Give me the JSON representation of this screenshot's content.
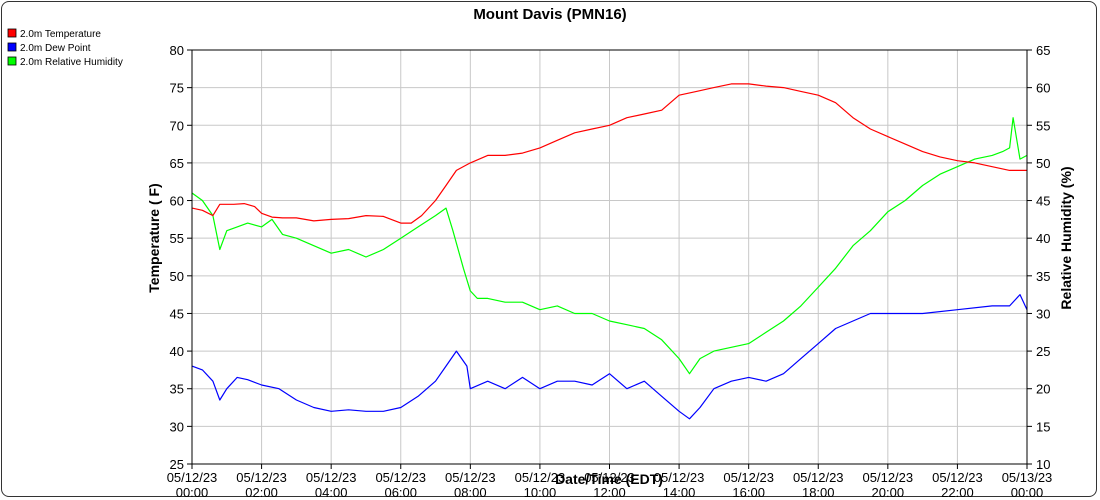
{
  "chart_data": {
    "type": "line",
    "title": "Mount Davis (PMN16)",
    "xlabel": "Date/Time (EDT)",
    "ylabel_left": "Temperature ( F)",
    "ylabel_right": "Relative Humidity (%)",
    "ylim_left": [
      25,
      80
    ],
    "ylim_right": [
      10,
      65
    ],
    "xlim_hours": [
      0,
      24
    ],
    "grid": true,
    "legend_placement": "top-left",
    "x_ticks": [
      {
        "date": "05/12/23",
        "time": "00:00"
      },
      {
        "date": "05/12/23",
        "time": "02:00"
      },
      {
        "date": "05/12/23",
        "time": "04:00"
      },
      {
        "date": "05/12/23",
        "time": "06:00"
      },
      {
        "date": "05/12/23",
        "time": "08:00"
      },
      {
        "date": "05/12/23",
        "time": "10:00"
      },
      {
        "date": "05/12/23",
        "time": "12:00"
      },
      {
        "date": "05/12/23",
        "time": "14:00"
      },
      {
        "date": "05/12/23",
        "time": "16:00"
      },
      {
        "date": "05/12/23",
        "time": "18:00"
      },
      {
        "date": "05/12/23",
        "time": "20:00"
      },
      {
        "date": "05/12/23",
        "time": "22:00"
      },
      {
        "date": "05/13/23",
        "time": "00:00"
      }
    ],
    "y_left_ticks": [
      "25",
      "30",
      "35",
      "40",
      "45",
      "50",
      "55",
      "60",
      "65",
      "70",
      "75",
      "80"
    ],
    "y_right_ticks": [
      "10",
      "15",
      "20",
      "25",
      "30",
      "35",
      "40",
      "45",
      "50",
      "55",
      "60",
      "65"
    ],
    "series": [
      {
        "name": "2.0m Temperature",
        "color": "#ff0000",
        "axis": "left",
        "points": [
          [
            0,
            59.0
          ],
          [
            0.3,
            58.7
          ],
          [
            0.6,
            58.0
          ],
          [
            0.8,
            59.5
          ],
          [
            1.2,
            59.5
          ],
          [
            1.5,
            59.6
          ],
          [
            1.8,
            59.2
          ],
          [
            2.0,
            58.3
          ],
          [
            2.3,
            57.8
          ],
          [
            2.6,
            57.7
          ],
          [
            3.0,
            57.7
          ],
          [
            3.5,
            57.3
          ],
          [
            4.0,
            57.5
          ],
          [
            4.5,
            57.6
          ],
          [
            5.0,
            58.0
          ],
          [
            5.5,
            57.9
          ],
          [
            6.0,
            57.0
          ],
          [
            6.3,
            57.0
          ],
          [
            6.6,
            58.0
          ],
          [
            7.0,
            60.0
          ],
          [
            7.3,
            62.0
          ],
          [
            7.6,
            64.0
          ],
          [
            8.0,
            65.0
          ],
          [
            8.5,
            66.0
          ],
          [
            9.0,
            66.0
          ],
          [
            9.5,
            66.3
          ],
          [
            10.0,
            67.0
          ],
          [
            10.5,
            68.0
          ],
          [
            11.0,
            69.0
          ],
          [
            11.5,
            69.5
          ],
          [
            12.0,
            70.0
          ],
          [
            12.5,
            71.0
          ],
          [
            13.0,
            71.5
          ],
          [
            13.5,
            72.0
          ],
          [
            14.0,
            74.0
          ],
          [
            14.5,
            74.5
          ],
          [
            15.0,
            75.0
          ],
          [
            15.5,
            75.5
          ],
          [
            16.0,
            75.5
          ],
          [
            16.5,
            75.2
          ],
          [
            17.0,
            75.0
          ],
          [
            17.5,
            74.5
          ],
          [
            18.0,
            74.0
          ],
          [
            18.5,
            73.0
          ],
          [
            19.0,
            71.0
          ],
          [
            19.5,
            69.5
          ],
          [
            20.0,
            68.5
          ],
          [
            20.5,
            67.5
          ],
          [
            21.0,
            66.5
          ],
          [
            21.5,
            65.8
          ],
          [
            22.0,
            65.3
          ],
          [
            22.5,
            65.0
          ],
          [
            23.0,
            64.5
          ],
          [
            23.5,
            64.0
          ],
          [
            24.0,
            64.0
          ]
        ]
      },
      {
        "name": "2.0m Dew Point",
        "color": "#0000ff",
        "axis": "left",
        "points": [
          [
            0,
            38.0
          ],
          [
            0.3,
            37.5
          ],
          [
            0.6,
            36.0
          ],
          [
            0.8,
            33.5
          ],
          [
            1.0,
            35.0
          ],
          [
            1.3,
            36.5
          ],
          [
            1.6,
            36.2
          ],
          [
            2.0,
            35.5
          ],
          [
            2.5,
            35.0
          ],
          [
            3.0,
            33.5
          ],
          [
            3.5,
            32.5
          ],
          [
            4.0,
            32.0
          ],
          [
            4.5,
            32.2
          ],
          [
            5.0,
            32.0
          ],
          [
            5.5,
            32.0
          ],
          [
            6.0,
            32.5
          ],
          [
            6.5,
            34.0
          ],
          [
            7.0,
            36.0
          ],
          [
            7.3,
            38.0
          ],
          [
            7.6,
            40.0
          ],
          [
            7.9,
            38.0
          ],
          [
            8.0,
            35.0
          ],
          [
            8.5,
            36.0
          ],
          [
            9.0,
            35.0
          ],
          [
            9.5,
            36.5
          ],
          [
            10.0,
            35.0
          ],
          [
            10.5,
            36.0
          ],
          [
            11.0,
            36.0
          ],
          [
            11.5,
            35.5
          ],
          [
            12.0,
            37.0
          ],
          [
            12.5,
            35.0
          ],
          [
            13.0,
            36.0
          ],
          [
            13.5,
            34.0
          ],
          [
            14.0,
            32.0
          ],
          [
            14.3,
            31.0
          ],
          [
            14.6,
            32.5
          ],
          [
            15.0,
            35.0
          ],
          [
            15.5,
            36.0
          ],
          [
            16.0,
            36.5
          ],
          [
            16.5,
            36.0
          ],
          [
            17.0,
            37.0
          ],
          [
            17.5,
            39.0
          ],
          [
            18.0,
            41.0
          ],
          [
            18.5,
            43.0
          ],
          [
            19.0,
            44.0
          ],
          [
            19.5,
            45.0
          ],
          [
            20.0,
            45.0
          ],
          [
            21.0,
            45.0
          ],
          [
            22.0,
            45.5
          ],
          [
            23.0,
            46.0
          ],
          [
            23.5,
            46.0
          ],
          [
            23.8,
            47.5
          ],
          [
            24.0,
            45.5
          ]
        ]
      },
      {
        "name": "2.0m Relative Humidity",
        "color": "#00ff00",
        "axis": "right",
        "points": [
          [
            0,
            46.0
          ],
          [
            0.3,
            45.0
          ],
          [
            0.6,
            43.0
          ],
          [
            0.8,
            38.5
          ],
          [
            1.0,
            41.0
          ],
          [
            1.3,
            41.5
          ],
          [
            1.6,
            42.0
          ],
          [
            2.0,
            41.5
          ],
          [
            2.3,
            42.5
          ],
          [
            2.6,
            40.5
          ],
          [
            3.0,
            40.0
          ],
          [
            3.5,
            39.0
          ],
          [
            4.0,
            38.0
          ],
          [
            4.5,
            38.5
          ],
          [
            5.0,
            37.5
          ],
          [
            5.5,
            38.5
          ],
          [
            6.0,
            40.0
          ],
          [
            6.5,
            41.5
          ],
          [
            7.0,
            43.0
          ],
          [
            7.3,
            44.0
          ],
          [
            7.5,
            41.0
          ],
          [
            7.8,
            36.0
          ],
          [
            8.0,
            33.0
          ],
          [
            8.2,
            32.0
          ],
          [
            8.5,
            32.0
          ],
          [
            9.0,
            31.5
          ],
          [
            9.5,
            31.5
          ],
          [
            10.0,
            30.5
          ],
          [
            10.5,
            31.0
          ],
          [
            11.0,
            30.0
          ],
          [
            11.5,
            30.0
          ],
          [
            12.0,
            29.0
          ],
          [
            12.5,
            28.5
          ],
          [
            13.0,
            28.0
          ],
          [
            13.5,
            26.5
          ],
          [
            14.0,
            24.0
          ],
          [
            14.3,
            22.0
          ],
          [
            14.6,
            24.0
          ],
          [
            15.0,
            25.0
          ],
          [
            15.5,
            25.5
          ],
          [
            16.0,
            26.0
          ],
          [
            16.5,
            27.5
          ],
          [
            17.0,
            29.0
          ],
          [
            17.5,
            31.0
          ],
          [
            18.0,
            33.5
          ],
          [
            18.5,
            36.0
          ],
          [
            19.0,
            39.0
          ],
          [
            19.5,
            41.0
          ],
          [
            20.0,
            43.5
          ],
          [
            20.5,
            45.0
          ],
          [
            21.0,
            47.0
          ],
          [
            21.5,
            48.5
          ],
          [
            22.0,
            49.5
          ],
          [
            22.5,
            50.5
          ],
          [
            23.0,
            51.0
          ],
          [
            23.3,
            51.5
          ],
          [
            23.5,
            52.0
          ],
          [
            23.6,
            56.0
          ],
          [
            23.8,
            50.5
          ],
          [
            24.0,
            51.0
          ]
        ]
      }
    ]
  }
}
